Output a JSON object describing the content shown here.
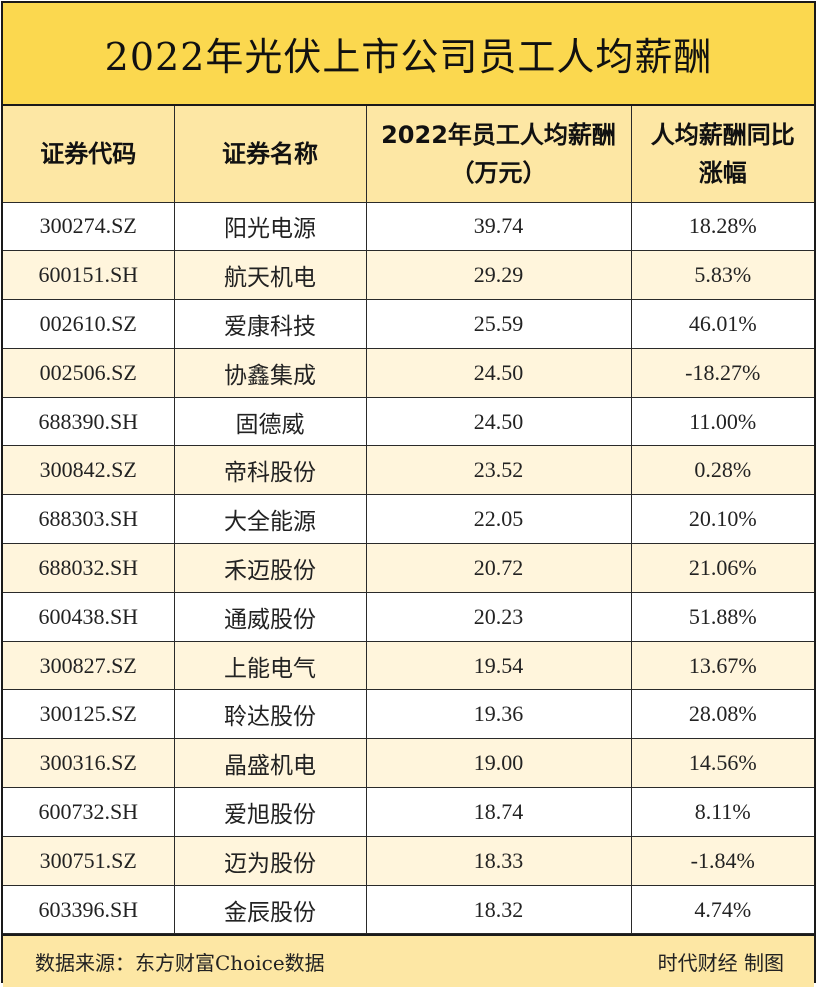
{
  "title": "2022年光伏上市公司员工人均薪酬",
  "headers": {
    "code": "证券代码",
    "name": "证券名称",
    "salary_line1": "2022年员工人均薪酬",
    "salary_line2": "（万元）",
    "growth_line1": "人均薪酬同比",
    "growth_line2": "涨幅"
  },
  "rows": [
    {
      "code": "300274.SZ",
      "name": "阳光电源",
      "salary": "39.74",
      "growth": "18.28%"
    },
    {
      "code": "600151.SH",
      "name": "航天机电",
      "salary": "29.29",
      "growth": "5.83%"
    },
    {
      "code": "002610.SZ",
      "name": "爱康科技",
      "salary": "25.59",
      "growth": "46.01%"
    },
    {
      "code": "002506.SZ",
      "name": "协鑫集成",
      "salary": "24.50",
      "growth": "-18.27%"
    },
    {
      "code": "688390.SH",
      "name": "固德威",
      "salary": "24.50",
      "growth": "11.00%"
    },
    {
      "code": "300842.SZ",
      "name": "帝科股份",
      "salary": "23.52",
      "growth": "0.28%"
    },
    {
      "code": "688303.SH",
      "name": "大全能源",
      "salary": "22.05",
      "growth": "20.10%"
    },
    {
      "code": "688032.SH",
      "name": "禾迈股份",
      "salary": "20.72",
      "growth": "21.06%"
    },
    {
      "code": "600438.SH",
      "name": "通威股份",
      "salary": "20.23",
      "growth": "51.88%"
    },
    {
      "code": "300827.SZ",
      "name": "上能电气",
      "salary": "19.54",
      "growth": "13.67%"
    },
    {
      "code": "300125.SZ",
      "name": "聆达股份",
      "salary": "19.36",
      "growth": "28.08%"
    },
    {
      "code": "300316.SZ",
      "name": "晶盛机电",
      "salary": "19.00",
      "growth": "14.56%"
    },
    {
      "code": "600732.SH",
      "name": "爱旭股份",
      "salary": "18.74",
      "growth": "8.11%"
    },
    {
      "code": "300751.SZ",
      "name": "迈为股份",
      "salary": "18.33",
      "growth": "-1.84%"
    },
    {
      "code": "603396.SH",
      "name": "金辰股份",
      "salary": "18.32",
      "growth": "4.74%"
    }
  ],
  "footer": {
    "source": "数据来源：东方财富Choice数据",
    "credit": "时代财经 制图"
  },
  "colors": {
    "title_bg": "#fbd84f",
    "header_bg": "#fde7a4",
    "stripe_bg": "#fff5dc",
    "border": "#1a1a1a"
  }
}
